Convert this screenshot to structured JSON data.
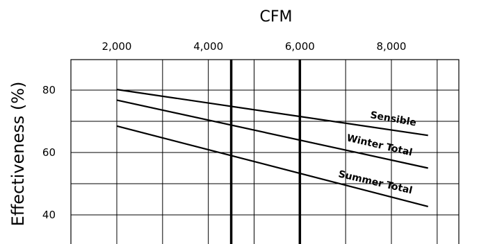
{
  "chart_data": {
    "type": "line",
    "title": "",
    "xlabel": "CFM",
    "ylabel": "Effectiveness (%)",
    "x_axis_position": "top",
    "xlim": [
      1000,
      9500
    ],
    "ylim": [
      33,
      90
    ],
    "x_ticks": [
      {
        "value": 2000,
        "label": "2,000"
      },
      {
        "value": 4000,
        "label": "4,000"
      },
      {
        "value": 6000,
        "label": "6,000"
      },
      {
        "value": 8000,
        "label": "8,000"
      }
    ],
    "y_ticks": [
      {
        "value": 80,
        "label": "80"
      },
      {
        "value": 60,
        "label": "60"
      },
      {
        "value": 40,
        "label": "40"
      }
    ],
    "grid": true,
    "reference_lines_x": [
      4500,
      6000
    ],
    "series": [
      {
        "name": "Sensible",
        "x": [
          2000,
          8800
        ],
        "values": [
          80.2,
          65.5
        ]
      },
      {
        "name": "Winter Total",
        "x": [
          2000,
          8800
        ],
        "values": [
          76.8,
          55.0
        ]
      },
      {
        "name": "Summer Total",
        "x": [
          2000,
          8800
        ],
        "values": [
          68.5,
          42.7
        ]
      }
    ],
    "legend": "inline-labels"
  }
}
